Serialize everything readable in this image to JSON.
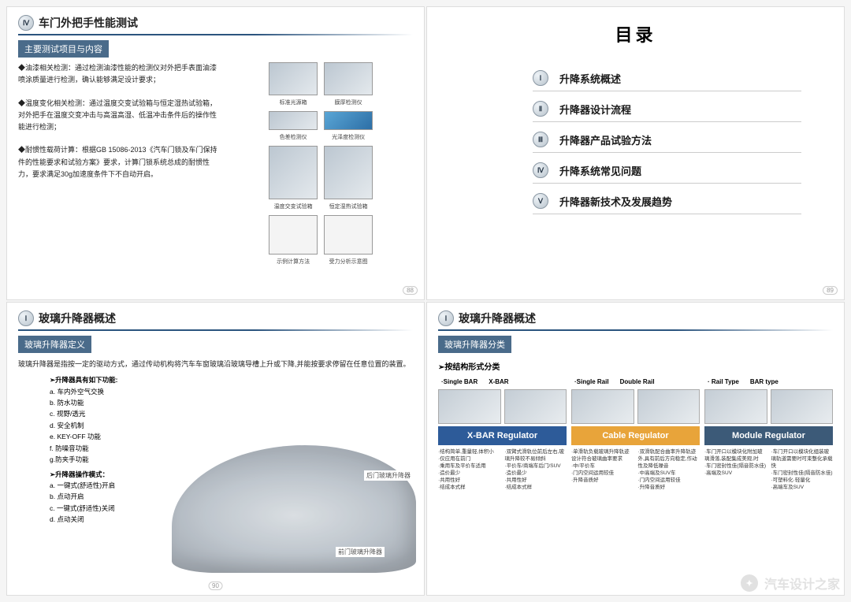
{
  "colors": {
    "brand": "汽车设计之家"
  },
  "slide1": {
    "badge": "Ⅳ",
    "title": "车门外把手性能测试",
    "subbar": "主要测试项目与内容",
    "p1": "◆油漆相关检测：通过检测油漆性能的检测仪对外把手表面油漆喷涂质量进行检测，确认能够满足设计要求；",
    "p2": "◆温度变化相关检测：通过温度交变试验箱与恒定湿热试验箱，对外把手在温度交变冲击与高温高湿、低温冲击条件后的操作性能进行检测；",
    "p3": "◆耐惯性载荷计算：根据GB 15086-2013《汽车门锁及车门保持件的性能要求和试验方案》要求，计算门锁系统总成的耐惯性力，要求满足30g加速度条件下不自动开启。",
    "thumbs": {
      "r1a": "标准光源箱",
      "r1b": "膜厚检测仪",
      "r2a": "色差检测仪",
      "r2b": "光泽度检测仪",
      "r3a": "温度交变试验箱",
      "r3b": "恒定湿热试验箱",
      "r4a": "示例计算方法",
      "r4b": "受力分析示意图"
    },
    "page": "88"
  },
  "slide2": {
    "title": "目录",
    "items": [
      {
        "num": "Ⅰ",
        "label": "升降系统概述"
      },
      {
        "num": "Ⅱ",
        "label": "升降器设计流程"
      },
      {
        "num": "Ⅲ",
        "label": "升降器产品试验方法"
      },
      {
        "num": "Ⅳ",
        "label": "升降系统常见问题"
      },
      {
        "num": "Ⅴ",
        "label": "升降器新技术及发展趋势"
      }
    ],
    "page": "89"
  },
  "slide3": {
    "badge": "Ⅰ",
    "title": "玻璃升降器概述",
    "subbar": "玻璃升降器定义",
    "lead": "玻璃升降器是指按一定的驱动方式，通过传动机构将汽车车窗玻璃沿玻璃导槽上升或下降,并能按要求停留在任意位置的装置。",
    "feat_head1": "➢升降器具有如下功能:",
    "feat1": [
      "a. 车内外空气交换",
      "b. 防水功能",
      "c. 视野/透光",
      "d. 安全机制",
      "e. KEY-OFF 功能",
      "f. 防噪音功能",
      "g.防夹手功能"
    ],
    "feat_head2": "➢升降器操作模式：",
    "feat2": [
      "a. 一键式(舒适性)开启",
      "b. 点动开启",
      "c. 一键式(舒适性)关闭",
      "d. 点动关闭"
    ],
    "callout_rear": "后门玻璃升降器",
    "callout_front": "前门玻璃升降器",
    "page": "90"
  },
  "slide4": {
    "badge": "Ⅰ",
    "title": "玻璃升降器概述",
    "subbar": "玻璃升降器分类",
    "subhead": "➢按结构形式分类",
    "cols": [
      {
        "h1": "·Single BAR",
        "h2": "X-BAR",
        "band": "X-BAR Regulator",
        "band_color": "#2d5b99",
        "d1": "·结构简单,重量轻,体积小\\n·仅应用在前门\\n·乘用车及平价车适用\\n·造价最少\\n·共用性好\\n·结成本式样",
        "d2": "·双臂式滑轨位前后左右,玻璃升降较不易倾斜\\n·平价车/商端车后门/SUV\\n·造价最少\\n·共用性好\\n·结成本式样"
      },
      {
        "h1": "·Single Rail",
        "h2": "Double Rail",
        "band": "Cable Regulator",
        "band_color": "#e8a43a",
        "d1": "·单滑轨负载玻璃升降轨迹设计符合玻璃曲率要求\\n·中/平价车\\n·门内空间运用较佳\\n·升降音质好",
        "d2": "·双滑轨配合曲率升降轨迹外,具有前后方向稳定,作动性及降低噪音\\n·中高端及SUV车\\n·门内空间运用较佳\\n·升降音质好"
      },
      {
        "h1": "· Rail Type",
        "h2": "BAR type",
        "band": "Module Regulator",
        "band_color": "#3c5a78",
        "d1": "·车门开口以模块化附加玻璃滑落,装配集成美观,时\\n·车门密封性佳(隔音防水佳)\\n·高端及SUV",
        "d2": "·车门开口以模块化组装玻璃轨道需要时可束整化承载快\\n·车门密封性佳(隔音防水佳)\\n·可塑料化·轻量化\\n·高端车及SUV"
      }
    ]
  },
  "watermark": "汽车设计之家"
}
